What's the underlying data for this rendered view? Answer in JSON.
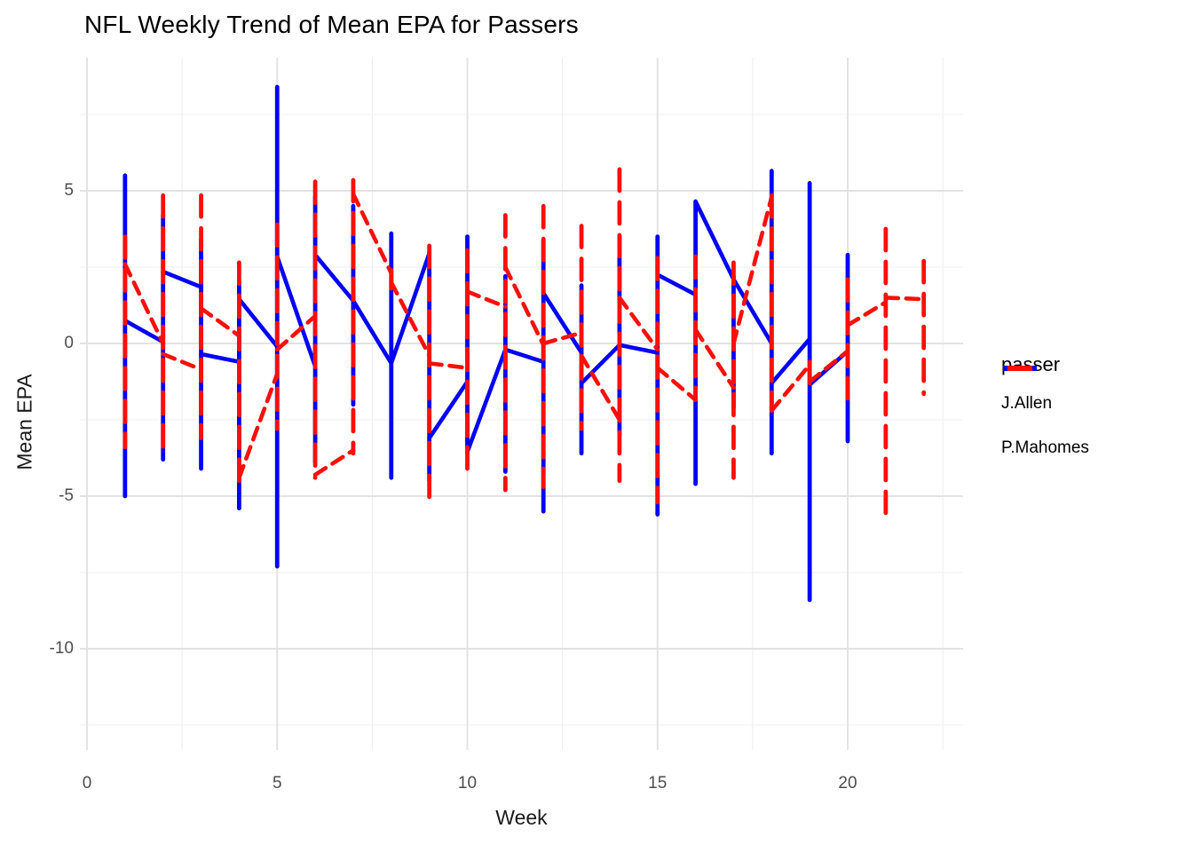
{
  "title": "NFL Weekly Trend of Mean EPA for Passers",
  "axes": {
    "x_label": "Week",
    "y_label": "Mean EPA",
    "x_ticks": [
      0,
      5,
      10,
      15,
      20
    ],
    "y_ticks": [
      5,
      0,
      -5,
      -10
    ]
  },
  "legend": {
    "title": "passer",
    "items": [
      {
        "label": "J.Allen",
        "color": "#0000F5",
        "dash": "solid"
      },
      {
        "label": "P.Mahomes",
        "color": "#F7100B",
        "dash": "dashed"
      }
    ]
  },
  "colors": {
    "blue": "#0000F5",
    "red": "#F7100B",
    "grid_major": "#E2E2E2",
    "grid_minor": "#EFEFEF",
    "tick_text": "#4D4D4D"
  },
  "chart_data": {
    "type": "line",
    "title": "NFL Weekly Trend of Mean EPA for Passers",
    "xlabel": "Week",
    "ylabel": "Mean EPA",
    "xlim": [
      -0.2,
      23.2
    ],
    "ylim": [
      -13.4,
      9.4
    ],
    "grid": true,
    "legend_position": "right",
    "x_major": [
      0,
      5,
      10,
      15,
      20
    ],
    "x_minor": [
      2.5,
      7.5,
      12.5,
      17.5,
      22.5
    ],
    "y_major": [
      5,
      0,
      -5,
      -10
    ],
    "y_minor": [
      7.5,
      2.5,
      -2.5,
      -7.5,
      -12.5
    ],
    "note": "Each week shows the vertical range of EPA values (lo..hi); the trend line enters each week at 'in' and leaves at 'out'.",
    "series": [
      {
        "name": "J.Allen",
        "color": "#0000F5",
        "linestyle": "solid",
        "weeks": [
          {
            "week": 1,
            "lo": -5.0,
            "hi": 5.5,
            "in": null,
            "out": 0.75
          },
          {
            "week": 2,
            "lo": -3.8,
            "hi": 4.2,
            "in": 0.05,
            "out": 2.35
          },
          {
            "week": 3,
            "lo": -4.1,
            "hi": 3.4,
            "in": 1.85,
            "out": -0.35
          },
          {
            "week": 4,
            "lo": -5.4,
            "hi": 2.0,
            "in": -0.6,
            "out": 1.45
          },
          {
            "week": 5,
            "lo": -7.3,
            "hi": 8.4,
            "in": -0.1,
            "out": 2.85
          },
          {
            "week": 6,
            "lo": -3.9,
            "hi": 4.8,
            "in": -0.75,
            "out": 2.9
          },
          {
            "week": 7,
            "lo": -2.0,
            "hi": 4.5,
            "in": 1.4,
            "out": 1.4
          },
          {
            "week": 8,
            "lo": -4.4,
            "hi": 3.6,
            "in": -0.65,
            "out": -0.65
          },
          {
            "week": 9,
            "lo": -4.5,
            "hi": 3.0,
            "in": 2.95,
            "out": -3.1
          },
          {
            "week": 10,
            "lo": -3.6,
            "hi": 3.5,
            "in": -1.25,
            "out": -3.55
          },
          {
            "week": 11,
            "lo": -4.2,
            "hi": 2.2,
            "in": -0.2,
            "out": -0.2
          },
          {
            "week": 12,
            "lo": -5.5,
            "hi": 3.4,
            "in": -0.6,
            "out": 1.65
          },
          {
            "week": 13,
            "lo": -3.6,
            "hi": 1.9,
            "in": -0.3,
            "out": -1.3
          },
          {
            "week": 14,
            "lo": -3.0,
            "hi": 3.5,
            "in": -0.05,
            "out": -0.05
          },
          {
            "week": 15,
            "lo": -5.6,
            "hi": 3.5,
            "in": -0.3,
            "out": 2.25
          },
          {
            "week": 16,
            "lo": -4.6,
            "hi": 4.65,
            "in": 1.6,
            "out": 4.65
          },
          {
            "week": 17,
            "lo": -2.1,
            "hi": 2.2,
            "in": 2.1,
            "out": 2.1
          },
          {
            "week": 18,
            "lo": -3.6,
            "hi": 5.65,
            "in": 0.0,
            "out": -1.3
          },
          {
            "week": 19,
            "lo": -8.4,
            "hi": 5.25,
            "in": 0.15,
            "out": -1.35
          },
          {
            "week": 20,
            "lo": -3.2,
            "hi": 2.9,
            "in": -0.25,
            "out": null
          }
        ]
      },
      {
        "name": "P.Mahomes",
        "color": "#F7100B",
        "linestyle": "dashed",
        "weeks": [
          {
            "week": 1,
            "lo": -3.4,
            "hi": 3.5,
            "in": null,
            "out": 2.6
          },
          {
            "week": 2,
            "lo": -3.4,
            "hi": 4.85,
            "in": 0.0,
            "out": -0.35
          },
          {
            "week": 3,
            "lo": -3.1,
            "hi": 4.85,
            "in": -0.85,
            "out": 1.15
          },
          {
            "week": 4,
            "lo": -4.5,
            "hi": 2.65,
            "in": 0.25,
            "out": -4.4
          },
          {
            "week": 5,
            "lo": -2.8,
            "hi": 3.9,
            "in": -1.0,
            "out": -0.2
          },
          {
            "week": 6,
            "lo": -4.4,
            "hi": 5.3,
            "in": 0.9,
            "out": -4.3
          },
          {
            "week": 7,
            "lo": -3.6,
            "hi": 5.35,
            "in": -3.5,
            "out": 4.9
          },
          {
            "week": 8,
            "lo": 1.8,
            "hi": 2.4,
            "in": 2.3,
            "out": 2.0
          },
          {
            "week": 9,
            "lo": -5.2,
            "hi": 3.2,
            "in": -0.4,
            "out": -0.65
          },
          {
            "week": 10,
            "lo": -4.2,
            "hi": 3.05,
            "in": -0.8,
            "out": 1.7
          },
          {
            "week": 11,
            "lo": -4.8,
            "hi": 4.2,
            "in": 1.2,
            "out": 2.5
          },
          {
            "week": 12,
            "lo": -4.7,
            "hi": 4.5,
            "in": -0.05,
            "out": 0.0
          },
          {
            "week": 13,
            "lo": -2.8,
            "hi": 3.85,
            "in": 0.35,
            "out": -0.4
          },
          {
            "week": 14,
            "lo": -4.5,
            "hi": 5.7,
            "in": -2.5,
            "out": 1.5
          },
          {
            "week": 15,
            "lo": -5.2,
            "hi": 2.8,
            "in": -0.2,
            "out": -0.8
          },
          {
            "week": 16,
            "lo": -1.85,
            "hi": 2.85,
            "in": -1.85,
            "out": 0.45
          },
          {
            "week": 17,
            "lo": -4.4,
            "hi": 2.65,
            "in": -1.45,
            "out": 0.0
          },
          {
            "week": 18,
            "lo": -2.2,
            "hi": 4.85,
            "in": 4.8,
            "out": -2.2
          },
          {
            "week": 19,
            "lo": -1.3,
            "hi": -0.6,
            "in": -0.7,
            "out": -1.25
          },
          {
            "week": 20,
            "lo": -1.8,
            "hi": 2.1,
            "in": -0.25,
            "out": 0.6
          },
          {
            "week": 21,
            "lo": -5.9,
            "hi": 3.75,
            "in": 1.35,
            "out": 1.5
          },
          {
            "week": 22,
            "lo": -1.65,
            "hi": 2.7,
            "in": 1.45,
            "out": null
          }
        ]
      }
    ]
  }
}
